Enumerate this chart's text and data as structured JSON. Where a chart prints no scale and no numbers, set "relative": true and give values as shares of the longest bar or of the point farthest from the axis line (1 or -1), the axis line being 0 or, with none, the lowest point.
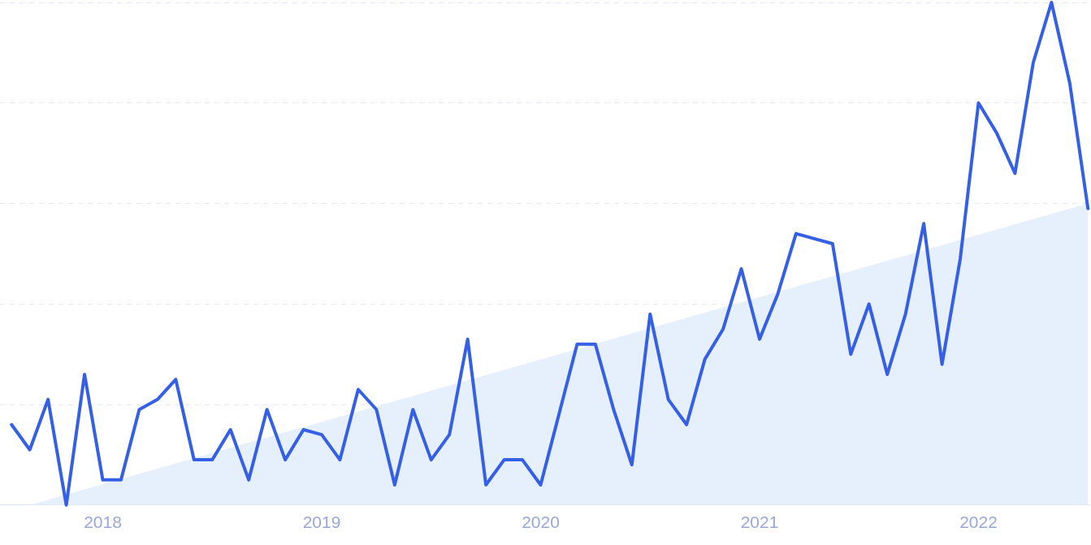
{
  "chart_data": {
    "type": "line",
    "relative": true,
    "grid": "y",
    "legend": false,
    "marker": "none",
    "line_style": "solid",
    "xlim": [
      "2017-07-12",
      "2022-07-02"
    ],
    "xticks": [
      "2018",
      "2019",
      "2020",
      "2021",
      "2022"
    ],
    "series": [
      {
        "type": "area",
        "color": "#e6effc",
        "x": [
          "2017-09",
          "2022-07"
        ],
        "values": [
          0,
          0.6
        ]
      },
      {
        "type": "line",
        "color": "#3560e6",
        "x": [
          "2017-08",
          "2017-09",
          "2017-10",
          "2017-11",
          "2017-12",
          "2018-01",
          "2018-02",
          "2018-03",
          "2018-04",
          "2018-05",
          "2018-06",
          "2018-07",
          "2018-08",
          "2018-09",
          "2018-10",
          "2018-11",
          "2018-12",
          "2019-01",
          "2019-02",
          "2019-03",
          "2019-04",
          "2019-05",
          "2019-06",
          "2019-07",
          "2019-08",
          "2019-09",
          "2019-10",
          "2019-11",
          "2019-12",
          "2020-01",
          "2020-02",
          "2020-03",
          "2020-04",
          "2020-05",
          "2020-06",
          "2020-07",
          "2020-08",
          "2020-09",
          "2020-10",
          "2020-11",
          "2020-12",
          "2021-01",
          "2021-02",
          "2021-03",
          "2021-04",
          "2021-05",
          "2021-06",
          "2021-07",
          "2021-08",
          "2021-09",
          "2021-10",
          "2021-11",
          "2021-12",
          "2022-01",
          "2022-02",
          "2022-03",
          "2022-04",
          "2022-05",
          "2022-06",
          "2022-07"
        ],
        "values": [
          0.16,
          0.11,
          0.21,
          0,
          0.26,
          0.05,
          0.05,
          0.19,
          0.21,
          0.25,
          0.09,
          0.09,
          0.15,
          0.05,
          0.19,
          0.09,
          0.15,
          0.14,
          0.09,
          0.23,
          0.19,
          0.04,
          0.19,
          0.09,
          0.14,
          0.33,
          0.04,
          0.09,
          0.09,
          0.04,
          0.18,
          0.32,
          0.32,
          0.19,
          0.08,
          0.38,
          0.21,
          0.16,
          0.29,
          0.35,
          0.47,
          0.33,
          0.42,
          0.54,
          0.53,
          0.52,
          0.3,
          0.4,
          0.26,
          0.38,
          0.56,
          0.28,
          0.49,
          0.8,
          0.74,
          0.66,
          0.88,
          1,
          0.84,
          0.59
        ]
      }
    ]
  }
}
